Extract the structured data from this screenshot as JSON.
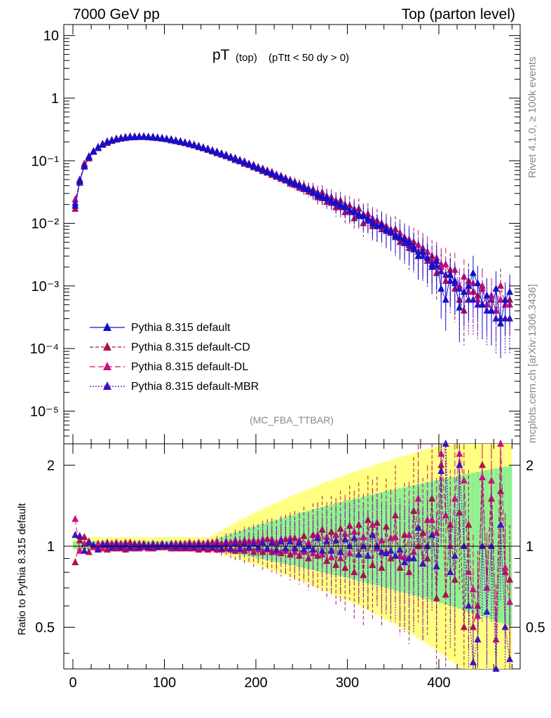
{
  "header": {
    "left": "7000 GeV pp",
    "right": "Top (parton level)"
  },
  "plot_title": {
    "main": "pT",
    "sub1": "(top)",
    "sub2": "(pTtt < 50 dy > 0)"
  },
  "side_labels": {
    "rivet": "Rivet 4.1.0, ≥ 100k events",
    "mcplots": "mcplots.cern.ch [arXiv:1306.3436]"
  },
  "analysis_tag": "(MC_FBA_TTBAR)",
  "colors": {
    "default": "#1010cc",
    "cd": "#b0104a",
    "dl": "#cc1080",
    "mbr": "#4010c0",
    "band_yellow": "#ffff80",
    "band_green": "#90f090"
  },
  "chart_data": [
    {
      "type": "line",
      "scale": "log",
      "xlabel": "",
      "ylabel": "",
      "xlim": [
        -10,
        490
      ],
      "ylim": [
        3e-06,
        15
      ],
      "y_tick_labels": [
        "10",
        "1",
        "10⁻¹",
        "10⁻²",
        "10⁻³",
        "10⁻⁴",
        "10⁻⁵"
      ],
      "legend": [
        {
          "name": "Pythia 8.315 default",
          "style": "solid"
        },
        {
          "name": "Pythia 8.315 default-CD",
          "style": "dashed"
        },
        {
          "name": "Pythia 8.315 default-DL",
          "style": "dashed"
        },
        {
          "name": "Pythia 8.315 default-MBR",
          "style": "dotted"
        }
      ],
      "x": [
        2.5,
        7.5,
        12.5,
        17.5,
        22.5,
        27.5,
        32.5,
        37.5,
        42.5,
        47.5,
        52.5,
        57.5,
        62.5,
        67.5,
        72.5,
        77.5,
        82.5,
        87.5,
        92.5,
        97.5,
        102.5,
        107.5,
        112.5,
        117.5,
        122.5,
        127.5,
        132.5,
        137.5,
        142.5,
        147.5,
        152.5,
        157.5,
        162.5,
        167.5,
        172.5,
        177.5,
        182.5,
        187.5,
        192.5,
        197.5,
        202.5,
        207.5,
        212.5,
        217.5,
        222.5,
        227.5,
        232.5,
        237.5,
        242.5,
        247.5,
        252.5,
        257.5,
        262.5,
        267.5,
        272.5,
        277.5,
        282.5,
        287.5,
        292.5,
        297.5,
        302.5,
        307.5,
        312.5,
        317.5,
        322.5,
        327.5,
        332.5,
        337.5,
        342.5,
        347.5,
        352.5,
        357.5,
        362.5,
        367.5,
        372.5,
        377.5,
        382.5,
        387.5,
        392.5,
        397.5,
        402.5,
        407.5,
        412.5,
        417.5,
        422.5,
        427.5,
        432.5,
        437.5,
        442.5,
        447.5,
        452.5,
        457.5,
        462.5,
        467.5,
        472.5,
        477.5
      ],
      "series": [
        {
          "name": "Pythia 8.315 default",
          "values": [
            0.019,
            0.046,
            0.083,
            0.113,
            0.14,
            0.163,
            0.182,
            0.198,
            0.21,
            0.22,
            0.228,
            0.234,
            0.238,
            0.24,
            0.241,
            0.241,
            0.239,
            0.236,
            0.232,
            0.227,
            0.222,
            0.215,
            0.208,
            0.201,
            0.193,
            0.185,
            0.177,
            0.168,
            0.16,
            0.152,
            0.143,
            0.135,
            0.128,
            0.12,
            0.113,
            0.106,
            0.1,
            0.093,
            0.087,
            0.082,
            0.076,
            0.071,
            0.066,
            0.062,
            0.058,
            0.054,
            0.05,
            0.046,
            0.043,
            0.04,
            0.037,
            0.035,
            0.032,
            0.028,
            0.027,
            0.025,
            0.023,
            0.021,
            0.02,
            0.018,
            0.016,
            0.015,
            0.014,
            0.013,
            0.012,
            0.01,
            0.009,
            0.0095,
            0.008,
            0.0075,
            0.0065,
            0.006,
            0.0055,
            0.005,
            0.0042,
            0.003,
            0.0035,
            0.0028,
            0.002,
            0.0025,
            0.0009,
            0.0006,
            0.0015,
            0.0012,
            0.00045,
            0.0008,
            0.001,
            0.0016,
            0.0011,
            0.0005,
            0.0007,
            0.0004,
            0.0009,
            0.00025,
            0.0006,
            0.0008
          ]
        },
        {
          "name": "Pythia 8.315 default-CD",
          "values": [
            0.017,
            0.048,
            0.09,
            0.108,
            0.14,
            0.16,
            0.186,
            0.192,
            0.214,
            0.216,
            0.232,
            0.228,
            0.244,
            0.236,
            0.245,
            0.238,
            0.242,
            0.232,
            0.235,
            0.224,
            0.225,
            0.21,
            0.212,
            0.197,
            0.197,
            0.181,
            0.181,
            0.164,
            0.164,
            0.148,
            0.147,
            0.131,
            0.131,
            0.117,
            0.116,
            0.102,
            0.103,
            0.089,
            0.09,
            0.078,
            0.079,
            0.068,
            0.07,
            0.059,
            0.06,
            0.051,
            0.053,
            0.043,
            0.046,
            0.037,
            0.04,
            0.032,
            0.035,
            0.026,
            0.031,
            0.022,
            0.026,
            0.018,
            0.023,
            0.015,
            0.019,
            0.012,
            0.017,
            0.01,
            0.014,
            0.009,
            0.011,
            0.008,
            0.009,
            0.007,
            0.008,
            0.005,
            0.006,
            0.004,
            0.005,
            0.003,
            0.004,
            0.0025,
            0.003,
            0.0016,
            0.0022,
            0.0012,
            0.0018,
            0.0009,
            0.0006,
            0.0004,
            0.0012,
            0.0008,
            0.0007,
            0.001,
            0.0005,
            0.0006,
            0.0004,
            0.001,
            0.0005,
            0.0006
          ]
        },
        {
          "name": "Pythia 8.315 default-DL",
          "values": [
            0.024,
            0.044,
            0.085,
            0.118,
            0.138,
            0.166,
            0.178,
            0.204,
            0.206,
            0.226,
            0.224,
            0.24,
            0.234,
            0.244,
            0.237,
            0.245,
            0.235,
            0.241,
            0.229,
            0.231,
            0.219,
            0.22,
            0.204,
            0.206,
            0.19,
            0.19,
            0.174,
            0.173,
            0.157,
            0.156,
            0.14,
            0.14,
            0.124,
            0.125,
            0.11,
            0.111,
            0.097,
            0.098,
            0.085,
            0.086,
            0.074,
            0.075,
            0.064,
            0.066,
            0.055,
            0.057,
            0.048,
            0.049,
            0.041,
            0.042,
            0.035,
            0.036,
            0.03,
            0.031,
            0.025,
            0.027,
            0.021,
            0.023,
            0.018,
            0.02,
            0.015,
            0.017,
            0.013,
            0.014,
            0.011,
            0.012,
            0.009,
            0.01,
            0.008,
            0.008,
            0.0065,
            0.007,
            0.005,
            0.0055,
            0.004,
            0.0045,
            0.003,
            0.0035,
            0.0025,
            0.0028,
            0.002,
            0.0022,
            0.0015,
            0.0018,
            0.001,
            0.0014,
            0.0008,
            0.0011,
            0.0006,
            0.0009,
            0.0005,
            0.0007,
            0.0004,
            0.0006,
            0.0005,
            0.0005
          ]
        },
        {
          "name": "Pythia 8.315 default-MBR",
          "values": [
            0.021,
            0.05,
            0.08,
            0.116,
            0.142,
            0.158,
            0.184,
            0.2,
            0.208,
            0.222,
            0.226,
            0.236,
            0.236,
            0.242,
            0.239,
            0.243,
            0.237,
            0.238,
            0.23,
            0.229,
            0.221,
            0.218,
            0.206,
            0.203,
            0.191,
            0.187,
            0.175,
            0.17,
            0.158,
            0.154,
            0.142,
            0.137,
            0.126,
            0.122,
            0.111,
            0.108,
            0.098,
            0.095,
            0.086,
            0.084,
            0.075,
            0.073,
            0.065,
            0.064,
            0.056,
            0.056,
            0.049,
            0.048,
            0.042,
            0.041,
            0.036,
            0.035,
            0.031,
            0.03,
            0.026,
            0.026,
            0.022,
            0.022,
            0.019,
            0.019,
            0.016,
            0.016,
            0.013,
            0.013,
            0.011,
            0.011,
            0.009,
            0.009,
            0.0075,
            0.0072,
            0.006,
            0.0058,
            0.0048,
            0.0045,
            0.0038,
            0.0035,
            0.003,
            0.0028,
            0.0022,
            0.0021,
            0.0017,
            0.0015,
            0.0012,
            0.0011,
            0.0009,
            0.0008,
            0.0006,
            0.0006,
            0.0005,
            0.0005,
            0.0004,
            0.0004,
            0.0003,
            0.0003,
            0.0003,
            0.0003
          ]
        }
      ]
    },
    {
      "type": "line",
      "ylabel": "Ratio to Pythia 8.315 default",
      "xlabel": "",
      "xlim": [
        -10,
        490
      ],
      "ylim": [
        0.35,
        2.4
      ],
      "x_tick_labels": [
        "0",
        "100",
        "200",
        "300",
        "400"
      ],
      "y_tick_labels": [
        "2",
        "1",
        "0.5"
      ],
      "reference_line": 1,
      "series": [
        {
          "name": "Pythia 8.315 default-CD",
          "values": [
            0.87,
            1.05,
            1.08,
            0.95,
            1.0,
            0.98,
            1.02,
            0.97,
            1.02,
            0.98,
            1.02,
            0.97,
            1.03,
            0.98,
            1.02,
            0.99,
            1.01,
            0.98,
            1.01,
            0.99,
            1.01,
            0.98,
            1.02,
            0.98,
            1.02,
            0.98,
            1.02,
            0.97,
            1.02,
            0.97,
            1.03,
            0.97,
            1.02,
            0.98,
            1.03,
            0.96,
            1.03,
            0.96,
            1.04,
            0.95,
            1.04,
            0.95,
            1.06,
            0.95,
            1.03,
            0.94,
            1.06,
            0.93,
            1.07,
            0.92,
            1.09,
            0.9,
            1.1,
            0.92,
            1.15,
            0.88,
            1.13,
            0.85,
            1.16,
            0.83,
            1.19,
            0.8,
            1.2,
            0.78,
            1.25,
            0.85,
            1.22,
            0.83,
            1.18,
            0.9,
            1.3,
            0.83,
            1.1,
            0.8,
            1.35,
            1.0,
            1.12,
            0.9,
            1.5,
            0.64,
            2.0,
            0.66,
            1.2,
            0.75,
            1.33,
            0.5,
            1.2,
            0.5,
            0.6,
            2.0,
            0.7,
            1.5,
            0.45,
            1.6,
            0.8,
            0.75
          ]
        },
        {
          "name": "Pythia 8.315 default-DL",
          "values": [
            1.26,
            0.96,
            1.02,
            1.04,
            0.99,
            1.02,
            0.98,
            1.03,
            0.98,
            1.03,
            0.98,
            1.03,
            0.98,
            1.02,
            0.98,
            1.02,
            0.98,
            1.02,
            0.99,
            1.02,
            0.99,
            1.02,
            0.98,
            1.02,
            0.98,
            1.03,
            0.98,
            1.03,
            0.98,
            1.03,
            0.98,
            1.04,
            0.97,
            1.04,
            0.97,
            1.05,
            0.97,
            1.05,
            0.98,
            1.05,
            0.97,
            1.06,
            0.97,
            1.06,
            0.95,
            1.06,
            0.96,
            1.07,
            0.95,
            1.05,
            0.95,
            1.03,
            0.94,
            1.1,
            0.93,
            1.08,
            0.91,
            1.1,
            0.9,
            1.11,
            0.94,
            1.13,
            0.93,
            1.08,
            0.92,
            1.2,
            0.98,
            1.05,
            0.95,
            1.07,
            1.08,
            0.92,
            0.91,
            1.1,
            0.95,
            1.5,
            0.86,
            1.25,
            1.25,
            1.12,
            2.2,
            1.3,
            1.0,
            1.5,
            2.2,
            1.75,
            0.8,
            0.69,
            0.55,
            1.8,
            0.7,
            1.75,
            0.45,
            2.4,
            0.83,
            0.62
          ]
        },
        {
          "name": "Pythia 8.315 default-MBR",
          "values": [
            1.1,
            1.09,
            0.96,
            1.03,
            1.01,
            0.97,
            1.01,
            1.01,
            0.99,
            1.01,
            0.99,
            1.01,
            0.99,
            1.01,
            0.99,
            1.01,
            0.99,
            1.01,
            0.99,
            1.01,
            1.0,
            1.01,
            0.99,
            1.01,
            0.99,
            1.01,
            0.99,
            1.01,
            0.99,
            1.01,
            0.99,
            1.01,
            0.98,
            1.02,
            0.98,
            1.02,
            0.98,
            1.02,
            0.99,
            1.02,
            0.99,
            1.03,
            0.98,
            1.03,
            0.97,
            1.04,
            0.98,
            1.04,
            0.98,
            1.03,
            0.97,
            1.0,
            0.97,
            1.07,
            0.96,
            1.04,
            0.96,
            1.05,
            0.95,
            1.06,
            1.0,
            1.07,
            0.93,
            1.0,
            0.92,
            1.1,
            1.0,
            0.95,
            0.94,
            0.96,
            0.92,
            0.97,
            0.87,
            0.9,
            0.9,
            1.17,
            0.86,
            1.0,
            1.1,
            0.84,
            1.9,
            2.5,
            0.8,
            0.92,
            2.0,
            1.0,
            0.6,
            0.37,
            0.45,
            1.0,
            0.57,
            1.0,
            0.33,
            1.2,
            0.5,
            0.38
          ]
        }
      ]
    }
  ]
}
